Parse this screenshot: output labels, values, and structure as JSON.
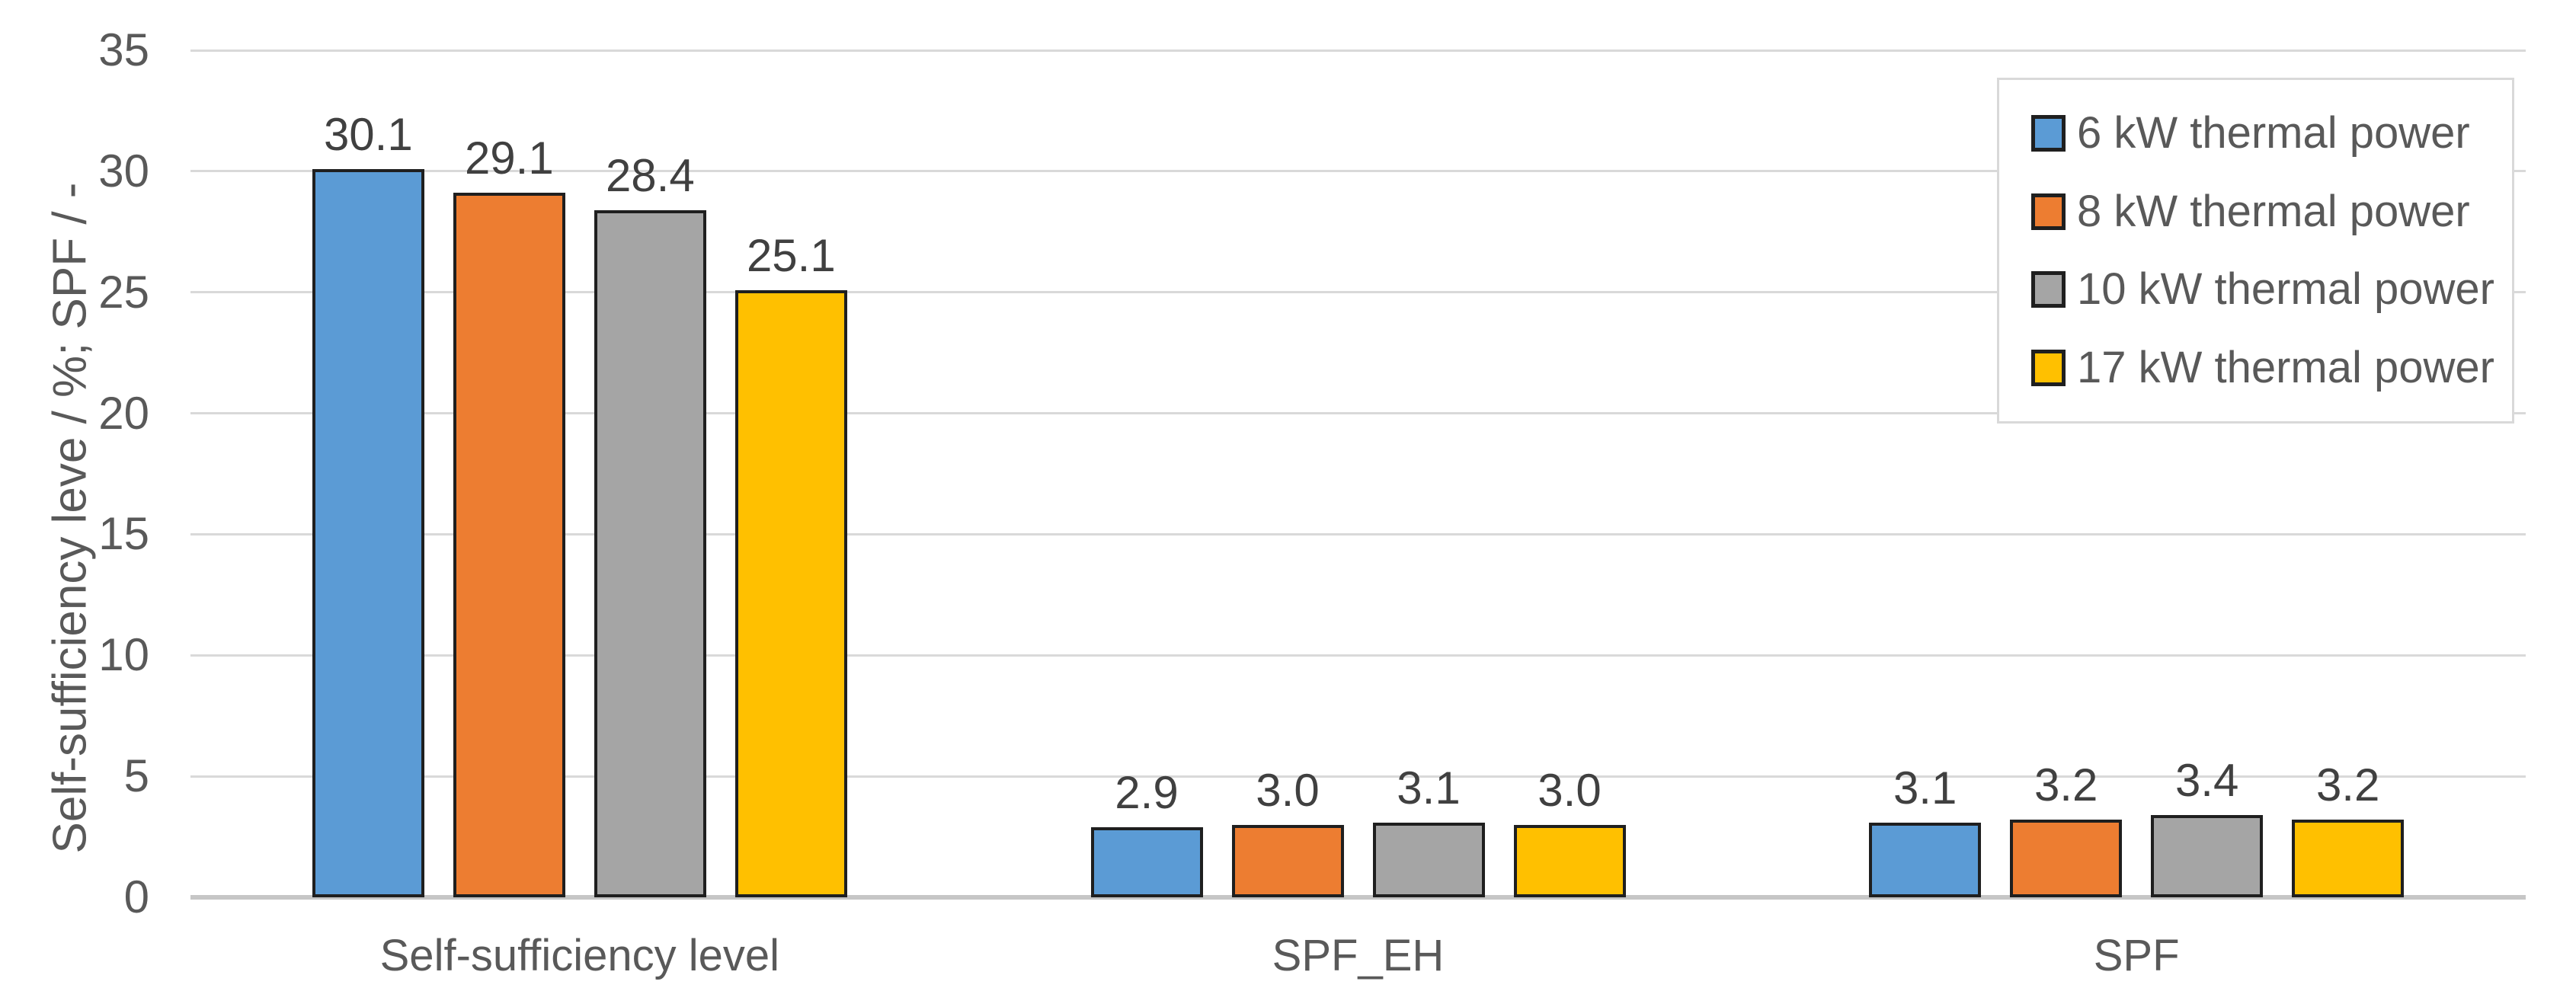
{
  "chart_data": {
    "type": "bar",
    "title": "",
    "categories": [
      "Self-sufficiency level",
      "SPF_EH",
      "SPF"
    ],
    "series": [
      {
        "name": "6 kW thermal power",
        "color": "#5B9BD5",
        "values": [
          30.1,
          2.9,
          3.1
        ]
      },
      {
        "name": "8 kW thermal power",
        "color": "#ED7D31",
        "values": [
          29.1,
          3.0,
          3.2
        ]
      },
      {
        "name": "10 kW thermal power",
        "color": "#A5A5A5",
        "values": [
          28.4,
          3.1,
          3.4
        ]
      },
      {
        "name": "17 kW thermal power",
        "color": "#FFC000",
        "values": [
          25.1,
          3.0,
          3.2
        ]
      }
    ],
    "value_labels": [
      [
        "30.1",
        "2.9",
        "3.1"
      ],
      [
        "29.1",
        "3.0",
        "3.2"
      ],
      [
        "28.4",
        "3.1",
        "3.4"
      ],
      [
        "25.1",
        "3.0",
        "3.2"
      ]
    ],
    "xlabel": "",
    "ylabel": "Self-sufficiency leve / %; SPF / -",
    "ylim": [
      0,
      35
    ],
    "yticks": [
      0,
      5,
      10,
      15,
      20,
      25,
      30,
      35
    ],
    "grid": true,
    "legend_position": "top-right",
    "style": {
      "background": "#ffffff",
      "gridline_color": "#d9d9d9",
      "baseline_color": "#c6c6c6",
      "bar_outline_color": "#1f1f1f",
      "axis_text_color": "#595959",
      "data_label_color": "#404040",
      "legend_border_color": "#d9d9d9"
    }
  }
}
